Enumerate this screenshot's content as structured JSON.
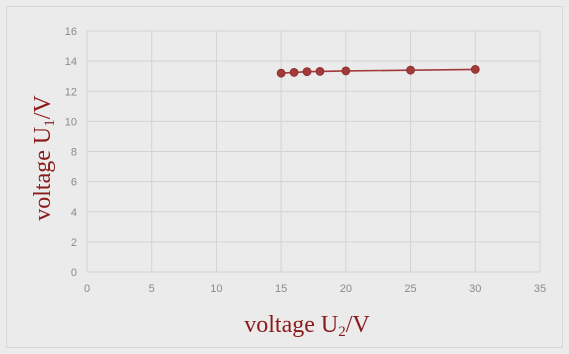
{
  "chart_data": {
    "type": "line",
    "x": [
      15,
      16,
      17,
      18,
      20,
      25,
      30
    ],
    "series": [
      {
        "values": [
          13.2,
          13.25,
          13.3,
          13.32,
          13.35,
          13.4,
          13.45
        ]
      }
    ],
    "xlim": [
      0,
      35
    ],
    "ylim": [
      0,
      16
    ],
    "x_ticks": [
      "0",
      "5",
      "10",
      "15",
      "20",
      "25",
      "30",
      "35"
    ],
    "y_ticks": [
      "0",
      "2",
      "4",
      "6",
      "8",
      "10",
      "12",
      "14",
      "16"
    ],
    "xlabel": {
      "prefix": "voltage U",
      "subscript": "2",
      "suffix": "/V"
    },
    "ylabel": {
      "prefix": "voltage U",
      "subscript": "1",
      "suffix": "/V"
    },
    "grid": true,
    "colors": {
      "series": "#a33a3a",
      "label": "#8b1a1a",
      "grid": "#d3d3d3",
      "background": "#ebebeb"
    }
  }
}
